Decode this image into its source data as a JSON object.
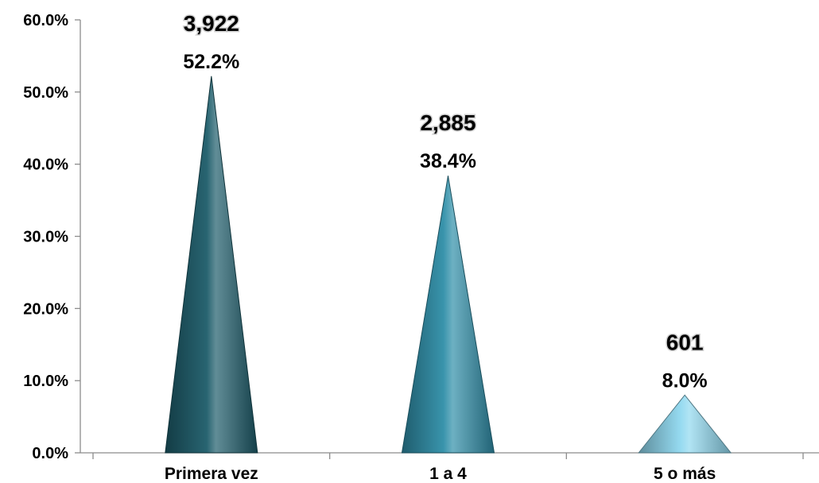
{
  "chart_data": {
    "type": "bar",
    "bar_shape": "cone",
    "categories": [
      "Primera vez",
      "1 a 4",
      "5 o más"
    ],
    "values": [
      52.2,
      38.4,
      8.0
    ],
    "value_labels": [
      "52.2%",
      "38.4%",
      "8.0%"
    ],
    "counts": [
      "3,922",
      "2,885",
      "601"
    ],
    "colors": [
      "#1d5c6a",
      "#2f8ea8",
      "#8fd8ef"
    ],
    "ylim": [
      0,
      60
    ],
    "yticks": [
      0,
      10,
      20,
      30,
      40,
      50,
      60
    ],
    "ytick_labels": [
      "0.0%",
      "10.0%",
      "20.0%",
      "30.0%",
      "40.0%",
      "50.0%",
      "60.0%"
    ],
    "grid": false,
    "legend": "none"
  }
}
